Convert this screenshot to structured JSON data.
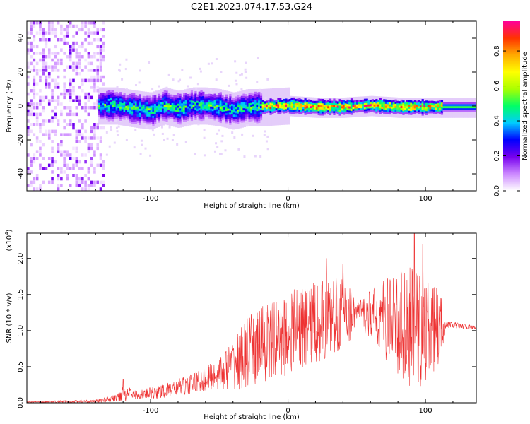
{
  "title": "C2E1.2023.074.17.53.G24",
  "chart_data": [
    {
      "type": "heatmap",
      "title": "C2E1.2023.074.17.53.G24",
      "xlabel": "Height of straight line (km)",
      "ylabel": "Frequency (Hz)",
      "xlim": [
        -190,
        137
      ],
      "ylim": [
        -50,
        50
      ],
      "xticks": [
        -100,
        0,
        100
      ],
      "xtick_labels": [
        "-100",
        "0",
        "100"
      ],
      "yticks": [
        -40,
        -20,
        0,
        20,
        40
      ],
      "ytick_labels": [
        "-40",
        "-20",
        "0",
        "20",
        "40"
      ],
      "band_center_hz": [
        {
          "x": -138,
          "y": 0
        },
        {
          "x": -125,
          "y": 0
        },
        {
          "x": -110,
          "y": -2
        },
        {
          "x": -100,
          "y": -3
        },
        {
          "x": -90,
          "y": 0
        },
        {
          "x": -80,
          "y": -2
        },
        {
          "x": -70,
          "y": 0
        },
        {
          "x": -60,
          "y": 0
        },
        {
          "x": -50,
          "y": -1
        },
        {
          "x": -40,
          "y": -3
        },
        {
          "x": -30,
          "y": -1
        },
        {
          "x": -20,
          "y": -1
        },
        {
          "x": 0,
          "y": 0
        },
        {
          "x": 20,
          "y": -1
        },
        {
          "x": 40,
          "y": -1
        },
        {
          "x": 60,
          "y": 0
        },
        {
          "x": 80,
          "y": -1
        },
        {
          "x": 100,
          "y": -1
        },
        {
          "x": 110,
          "y": -1
        },
        {
          "x": 137,
          "y": -1
        }
      ],
      "colorbar": {
        "label": "Normalized spectral amplitude",
        "ticks": [
          0.0,
          0.2,
          0.4,
          0.6,
          0.8
        ],
        "tick_labels": [
          "0.0",
          "0.2",
          "0.4",
          "0.6",
          "0.8"
        ],
        "range": [
          0,
          0.97
        ],
        "colors": [
          "#ffffff",
          "#cc88ff",
          "#7700ee",
          "#0000ff",
          "#00ccff",
          "#00ff66",
          "#aaff00",
          "#ffff00",
          "#ffaa00",
          "#ff3300",
          "#ff0099"
        ]
      }
    },
    {
      "type": "line",
      "xlabel": "Height of straight line (km)",
      "ylabel": "SNR (10 * v/v)",
      "scale_label": "(x10",
      "scale_exp": "4",
      "scale_close": ")",
      "xlim": [
        -190,
        137
      ],
      "ylim": [
        0,
        2.35
      ],
      "xticks": [
        -100,
        0,
        100
      ],
      "xtick_labels": [
        "-100",
        "0",
        "100"
      ],
      "yticks": [
        0.0,
        0.5,
        1.0,
        1.5,
        2.0
      ],
      "ytick_labels": [
        "0.0",
        "0.5",
        "1.0",
        "1.5",
        "2.0"
      ],
      "series": [
        {
          "name": "SNR",
          "color": "#ee3333",
          "envelope_x": [
            -190,
            -140,
            -125,
            -120,
            -110,
            -90,
            -70,
            -50,
            -40,
            -30,
            -20,
            -10,
            0,
            10,
            20,
            30,
            40,
            45,
            50,
            60,
            70,
            80,
            90,
            100,
            105,
            110,
            115,
            137
          ],
          "envelope_mean": [
            0.01,
            0.02,
            0.06,
            0.12,
            0.1,
            0.15,
            0.25,
            0.38,
            0.5,
            0.62,
            0.75,
            0.82,
            0.9,
            1.0,
            1.05,
            1.12,
            1.2,
            1.2,
            1.25,
            1.18,
            1.12,
            1.02,
            0.95,
            0.92,
            0.95,
            1.0,
            1.08,
            1.04
          ],
          "envelope_spread": [
            0.01,
            0.02,
            0.05,
            0.12,
            0.06,
            0.1,
            0.14,
            0.22,
            0.35,
            0.5,
            0.55,
            0.55,
            0.58,
            0.58,
            0.6,
            0.55,
            0.5,
            0.45,
            0.15,
            0.35,
            0.55,
            0.75,
            0.85,
            0.75,
            0.6,
            0.55,
            0.05,
            0.03
          ],
          "peaks": [
            {
              "x": -120,
              "y": 0.33
            },
            {
              "x": 28,
              "y": 2.0
            },
            {
              "x": 40,
              "y": 1.92
            },
            {
              "x": 92,
              "y": 2.35
            },
            {
              "x": 98,
              "y": 2.2
            }
          ]
        }
      ]
    }
  ]
}
